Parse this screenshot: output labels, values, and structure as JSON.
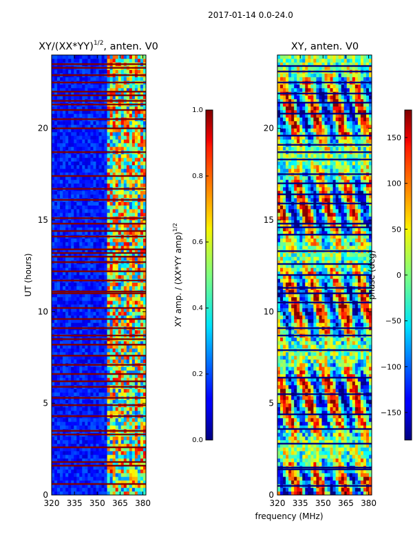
{
  "suptitle": "2017-01-14 0.0-24.0",
  "xlabel": "frequency (MHz)",
  "chart_data": [
    {
      "type": "heatmap",
      "title": "XY/(XX*YY)",
      "title_exponent": "1/2",
      "title_suffix": ", anten. V0",
      "ylabel": "UT (hours)",
      "x_range": [
        320,
        382
      ],
      "y_range": [
        0,
        24
      ],
      "x_ticks": [
        320,
        335,
        350,
        365,
        380
      ],
      "y_ticks": [
        0,
        5,
        10,
        15,
        20
      ],
      "colormap": "jet",
      "colorbar": {
        "range": [
          0.0,
          1.0
        ],
        "ticks": [
          "0.0",
          "0.2",
          "0.4",
          "0.6",
          "0.8",
          "1.0"
        ],
        "label": "XY amp. / (XX*YY amp)",
        "label_exponent": "1/2"
      },
      "bright_band_start": 357,
      "bad_rows": [
        0.6,
        1.6,
        1.8,
        2.6,
        3.3,
        3.5,
        4.3,
        4.9,
        5.3,
        5.9,
        6.2,
        6.6,
        7.1,
        7.6,
        8.2,
        8.5,
        8.7,
        9.1,
        9.6,
        10.2,
        11.0,
        11.1,
        11.7,
        12.2,
        12.7,
        13.0,
        13.2,
        13.4,
        14.1,
        14.4,
        14.8,
        15.1,
        16.1,
        16.7,
        17.4,
        18.7,
        20.0,
        20.5,
        21.0,
        21.3,
        21.5,
        21.8,
        22.0,
        22.5,
        22.9,
        23.3,
        23.5
      ]
    },
    {
      "type": "heatmap",
      "title": "XY, anten. V0",
      "x_range": [
        320,
        382
      ],
      "y_range": [
        0,
        24
      ],
      "x_ticks": [
        320,
        335,
        350,
        365,
        380
      ],
      "y_ticks": [
        0,
        5,
        10,
        15,
        20
      ],
      "colormap": "jet",
      "colorbar": {
        "range": [
          -180,
          180
        ],
        "ticks": [
          "150",
          "100",
          "50",
          "0",
          "−50",
          "−100",
          "−150"
        ],
        "tick_values": [
          150,
          100,
          50,
          0,
          -50,
          -100,
          -150
        ],
        "label": "phase (deg)"
      },
      "bad_rows": [
        0.5,
        1.4,
        1.5,
        2.8,
        3.6,
        4.4,
        5.5,
        6.4,
        7.9,
        8.7,
        9.1,
        10.5,
        11.0,
        11.3,
        12.0,
        12.6,
        13.3,
        14.2,
        14.6,
        14.8,
        15.9,
        16.4,
        17.0,
        17.5,
        18.3,
        18.7,
        19.1,
        19.6,
        20.8,
        21.4,
        21.9,
        22.5,
        23.1,
        23.4
      ]
    }
  ]
}
